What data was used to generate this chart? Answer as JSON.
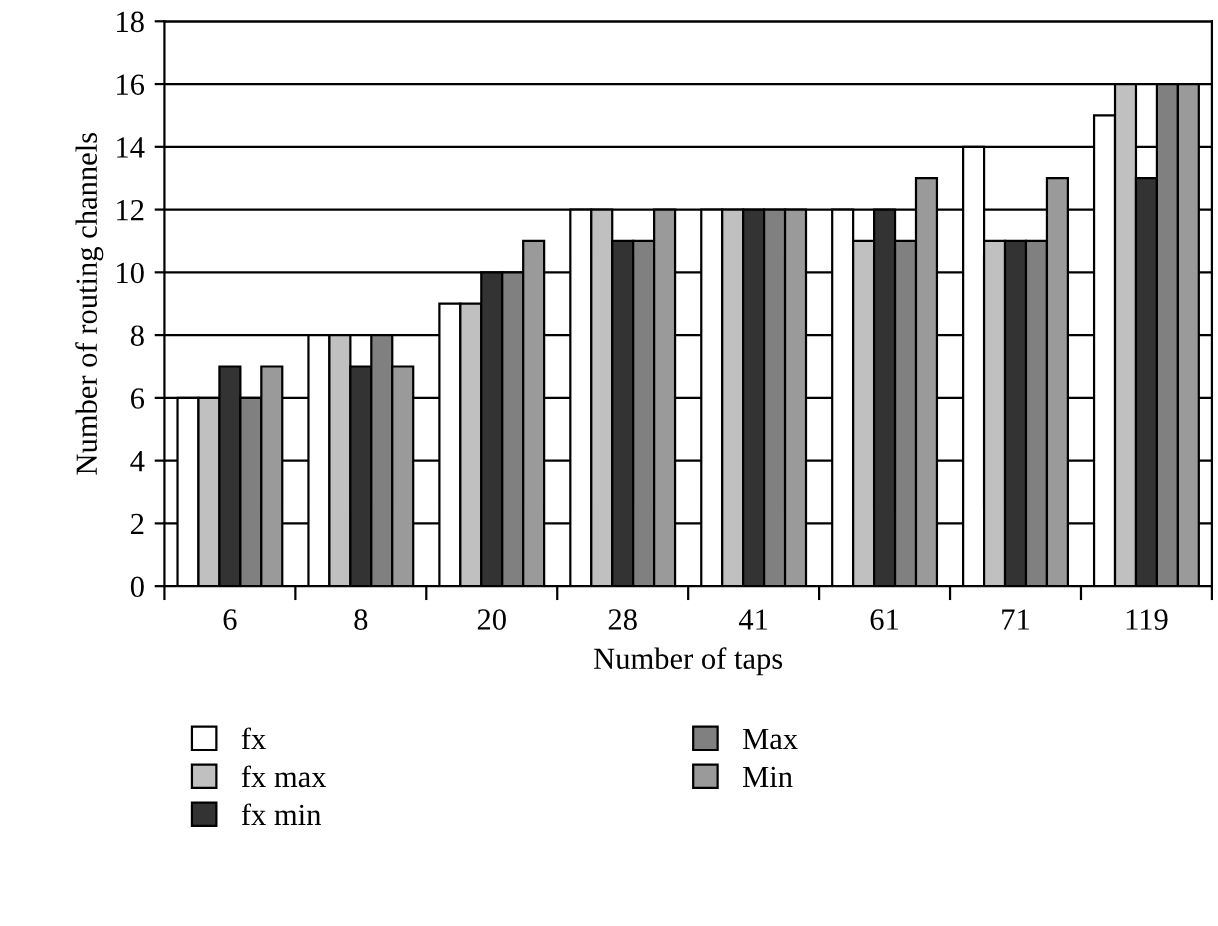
{
  "chart_data": {
    "type": "bar",
    "xlabel": "Number of taps",
    "ylabel": "Number of routing channels",
    "categories": [
      "6",
      "8",
      "20",
      "28",
      "41",
      "61",
      "71",
      "119"
    ],
    "series": [
      {
        "name": "fx",
        "color": "#ffffff",
        "values": [
          6,
          8,
          9,
          12,
          12,
          12,
          14,
          15
        ]
      },
      {
        "name": "fx max",
        "color": "#c0c0c0",
        "values": [
          6,
          8,
          9,
          12,
          12,
          11,
          11,
          16
        ]
      },
      {
        "name": "fx min",
        "color": "#333333",
        "values": [
          7,
          7,
          10,
          11,
          12,
          12,
          11,
          13
        ]
      },
      {
        "name": "Max",
        "color": "#808080",
        "values": [
          6,
          8,
          10,
          11,
          12,
          11,
          11,
          16
        ]
      },
      {
        "name": "Min",
        "color": "#9a9a9a",
        "values": [
          7,
          7,
          11,
          12,
          12,
          13,
          13,
          16
        ]
      }
    ],
    "ylim": [
      0,
      18
    ],
    "yticks": [
      0,
      2,
      4,
      6,
      8,
      10,
      12,
      14,
      16,
      18
    ],
    "grid": "y",
    "legend": "bottom"
  }
}
